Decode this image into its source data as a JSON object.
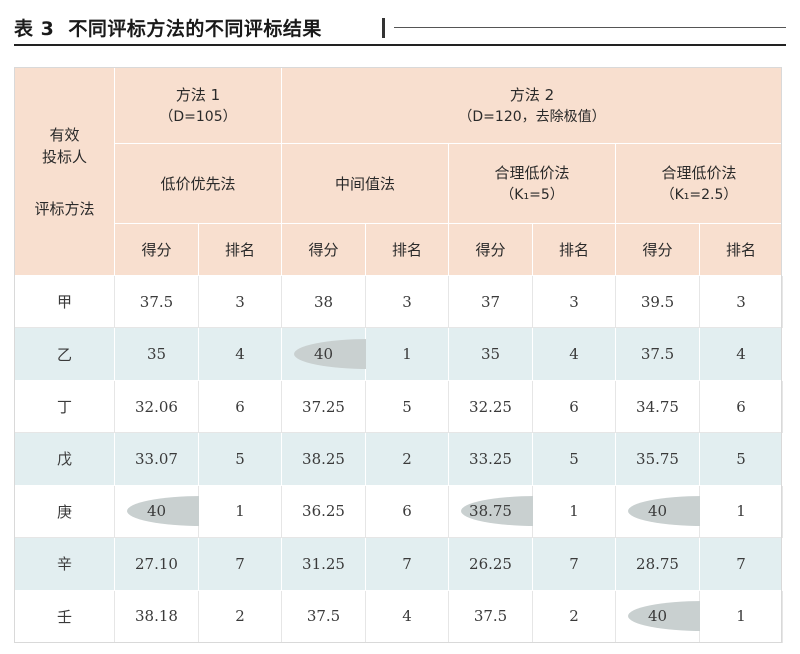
{
  "title": {
    "number": "表 3",
    "text": "不同评标方法的不同评标结果"
  },
  "header": {
    "corner": {
      "line1": "有效",
      "line2": "投标人",
      "line3": "评标方法"
    },
    "method1": {
      "name": "方法 1",
      "param": "（D=105）",
      "sub": "低价优先法"
    },
    "method2": {
      "name": "方法 2",
      "param": "（D=120，去除极值）",
      "sub1": "中间值法",
      "sub2": {
        "line1": "合理低价法",
        "line2": "（K₁=5）"
      },
      "sub3": {
        "line1": "合理低价法",
        "line2": "（K₁=2.5）"
      }
    },
    "score_label": "得分",
    "rank_label": "排名"
  },
  "rows": [
    {
      "bidder": "甲",
      "m1_score": "37.5",
      "m1_rank": "3",
      "mid_score": "38",
      "mid_rank": "3",
      "k5_score": "37",
      "k5_rank": "3",
      "k25_score": "39.5",
      "k25_rank": "3"
    },
    {
      "bidder": "乙",
      "m1_score": "35",
      "m1_rank": "4",
      "mid_score": "40",
      "mid_rank": "1",
      "k5_score": "35",
      "k5_rank": "4",
      "k25_score": "37.5",
      "k25_rank": "4"
    },
    {
      "bidder": "丁",
      "m1_score": "32.06",
      "m1_rank": "6",
      "mid_score": "37.25",
      "mid_rank": "5",
      "k5_score": "32.25",
      "k5_rank": "6",
      "k25_score": "34.75",
      "k25_rank": "6"
    },
    {
      "bidder": "戊",
      "m1_score": "33.07",
      "m1_rank": "5",
      "mid_score": "38.25",
      "mid_rank": "2",
      "k5_score": "33.25",
      "k5_rank": "5",
      "k25_score": "35.75",
      "k25_rank": "5"
    },
    {
      "bidder": "庚",
      "m1_score": "40",
      "m1_rank": "1",
      "mid_score": "36.25",
      "mid_rank": "6",
      "k5_score": "38.75",
      "k5_rank": "1",
      "k25_score": "40",
      "k25_rank": "1"
    },
    {
      "bidder": "辛",
      "m1_score": "27.10",
      "m1_rank": "7",
      "mid_score": "31.25",
      "mid_rank": "7",
      "k5_score": "26.25",
      "k5_rank": "7",
      "k25_score": "28.75",
      "k25_rank": "7"
    },
    {
      "bidder": "壬",
      "m1_score": "38.18",
      "m1_rank": "2",
      "mid_score": "37.5",
      "mid_rank": "4",
      "k5_score": "37.5",
      "k5_rank": "2",
      "k25_score": "40",
      "k25_rank": "1"
    }
  ],
  "highlights": [
    {
      "row": 1,
      "method": "mid"
    },
    {
      "row": 4,
      "method": "m1"
    },
    {
      "row": 4,
      "method": "k5"
    },
    {
      "row": 4,
      "method": "k25"
    },
    {
      "row": 6,
      "method": "k25"
    }
  ],
  "colors": {
    "header_bg": "#f8dfcf",
    "stripe_bg": "#e2eef0",
    "highlight_oval": "#c9d0d0"
  }
}
